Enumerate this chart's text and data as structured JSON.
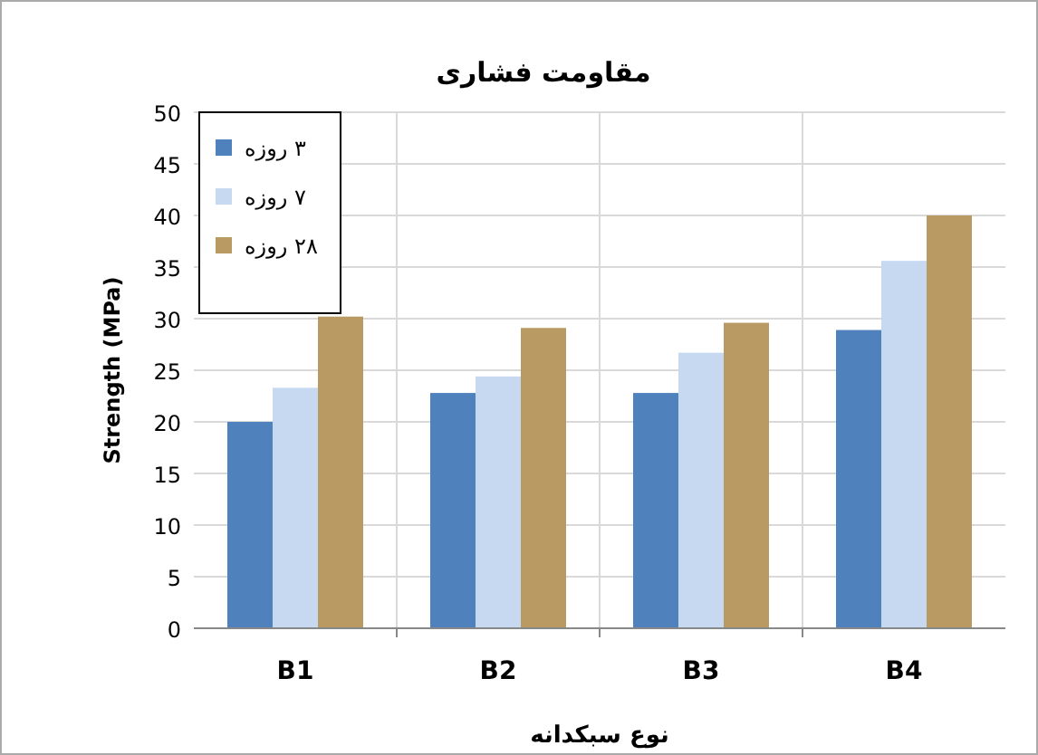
{
  "chart_data": {
    "type": "bar",
    "title": "مقاومت فشاری",
    "xlabel": "نوع سبکدانه",
    "ylabel": "Strength (MPa)",
    "categories": [
      "B1",
      "B2",
      "B3",
      "B4"
    ],
    "series": [
      {
        "name": "۳ روزه",
        "color": "#4f81bd",
        "values": [
          20,
          22.8,
          22.8,
          28.9
        ]
      },
      {
        "name": "۷ روزه",
        "color": "#c6d9f1",
        "values": [
          23.3,
          24.4,
          26.7,
          35.6
        ]
      },
      {
        "name": "۲۸ روزه",
        "color": "#b89a62",
        "values": [
          30.2,
          29.1,
          29.6,
          40
        ]
      }
    ],
    "ylim": [
      0,
      50
    ],
    "yticks": [
      0,
      5,
      10,
      15,
      20,
      25,
      30,
      35,
      40,
      45,
      50
    ],
    "grid": true,
    "legend": "top left"
  }
}
